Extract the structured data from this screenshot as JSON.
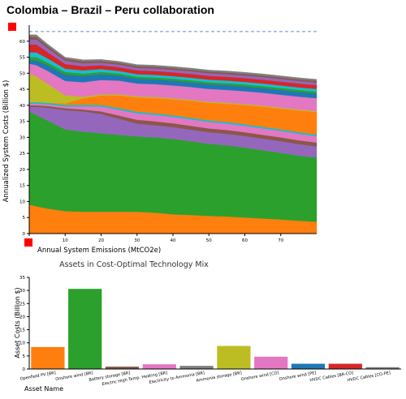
{
  "page": {
    "title": "Colombia – Brazil – Peru collaboration"
  },
  "colors": {
    "handle": "#ff0000",
    "dashed_line": "#5b8fd6"
  },
  "chart_data": [
    {
      "type": "area",
      "title": "",
      "xlabel": "Annual System Emissions (MtCO2e)",
      "ylabel": "Annualized System Costs (Billion $)",
      "xlim": [
        0,
        80
      ],
      "ylim": [
        0,
        65
      ],
      "x_ticks": [
        0,
        10,
        20,
        30,
        40,
        50,
        60,
        70
      ],
      "y_ticks": [
        0,
        5,
        10,
        15,
        20,
        25,
        30,
        35,
        40,
        45,
        50,
        55,
        60
      ],
      "reference_line_y": 63,
      "x": [
        0,
        2,
        5,
        10,
        15,
        20,
        25,
        30,
        35,
        40,
        45,
        50,
        55,
        60,
        65,
        70,
        75,
        80
      ],
      "series": [
        {
          "color": "#ff7f0e",
          "values": [
            9.0,
            8.5,
            7.8,
            7.0,
            6.8,
            6.8,
            6.8,
            6.8,
            6.5,
            6.0,
            5.8,
            5.5,
            5.3,
            5.0,
            4.7,
            4.4,
            4.0,
            3.7
          ]
        },
        {
          "color": "#2ca02c",
          "values": [
            29.0,
            28.5,
            27.5,
            25.5,
            25.0,
            24.5,
            24.0,
            23.5,
            23.5,
            23.5,
            23.0,
            22.5,
            22.2,
            21.8,
            21.3,
            20.8,
            20.3,
            20.0
          ]
        },
        {
          "color": "#9467bd",
          "values": [
            1.5,
            2.5,
            4.0,
            6.0,
            6.3,
            6.0,
            5.0,
            4.0,
            3.8,
            3.7,
            3.6,
            3.6,
            3.6,
            3.6,
            3.6,
            3.6,
            3.6,
            3.5
          ]
        },
        {
          "color": "#8c564b",
          "values": [
            0.5,
            0.5,
            0.5,
            0.6,
            0.6,
            0.8,
            1.0,
            1.2,
            1.2,
            1.2,
            1.2,
            1.2,
            1.2,
            1.2,
            1.2,
            1.2,
            1.2,
            1.2
          ]
        },
        {
          "color": "#e377c2",
          "values": [
            0.5,
            0.5,
            0.5,
            0.5,
            1.0,
            1.5,
            1.8,
            2.0,
            2.0,
            2.0,
            2.0,
            2.0,
            2.0,
            2.0,
            2.0,
            2.0,
            2.0,
            2.0
          ]
        },
        {
          "color": "#17becf",
          "values": [
            0.5,
            0.5,
            0.5,
            0.5,
            0.5,
            0.5,
            0.5,
            0.5,
            0.5,
            0.5,
            0.5,
            0.5,
            0.5,
            0.5,
            0.5,
            0.5,
            0.5,
            0.5
          ]
        },
        {
          "color": "#ff7f0e",
          "values": [
            0.0,
            0.0,
            0.0,
            0.5,
            2.0,
            3.0,
            4.0,
            4.5,
            4.8,
            5.0,
            5.3,
            5.5,
            5.7,
            6.0,
            6.3,
            6.5,
            6.8,
            7.0
          ]
        },
        {
          "color": "#bcbd22",
          "values": [
            9.0,
            8.0,
            6.0,
            2.5,
            0.5,
            0.3,
            0.3,
            0.3,
            0.3,
            0.3,
            0.3,
            0.3,
            0.3,
            0.3,
            0.3,
            0.3,
            0.3,
            0.3
          ]
        },
        {
          "color": "#e377c2",
          "values": [
            3.0,
            3.5,
            4.0,
            4.5,
            4.5,
            4.5,
            4.3,
            4.0,
            4.0,
            4.0,
            4.0,
            4.0,
            4.0,
            4.0,
            4.0,
            4.0,
            4.0,
            4.0
          ]
        },
        {
          "color": "#1f77b4",
          "values": [
            1.0,
            1.5,
            1.8,
            2.0,
            2.0,
            1.8,
            1.6,
            1.5,
            1.5,
            1.5,
            1.5,
            1.5,
            1.5,
            1.5,
            1.5,
            1.5,
            1.5,
            1.5
          ]
        },
        {
          "color": "#2ca02c",
          "values": [
            1.0,
            1.0,
            0.8,
            0.8,
            0.7,
            0.7,
            0.6,
            0.6,
            0.6,
            0.6,
            0.6,
            0.6,
            0.6,
            0.6,
            0.6,
            0.6,
            0.6,
            0.6
          ]
        },
        {
          "color": "#17becf",
          "values": [
            1.5,
            1.5,
            1.3,
            1.0,
            1.0,
            0.9,
            0.8,
            0.8,
            0.8,
            0.8,
            0.8,
            0.8,
            0.8,
            0.8,
            0.8,
            0.8,
            0.8,
            0.8
          ]
        },
        {
          "color": "#d62728",
          "values": [
            2.5,
            2.5,
            2.0,
            1.5,
            1.3,
            1.2,
            1.2,
            1.2,
            1.2,
            1.2,
            1.2,
            1.2,
            1.2,
            1.2,
            1.2,
            1.2,
            1.2,
            1.2
          ]
        },
        {
          "color": "#9467bd",
          "values": [
            1.5,
            1.5,
            1.2,
            1.0,
            0.9,
            0.8,
            0.8,
            0.8,
            0.8,
            0.8,
            0.8,
            0.8,
            0.8,
            0.8,
            0.8,
            0.8,
            0.8,
            0.8
          ]
        },
        {
          "color": "#8c564b",
          "values": [
            0.8,
            0.8,
            0.7,
            0.6,
            0.6,
            0.5,
            0.5,
            0.5,
            0.5,
            0.5,
            0.5,
            0.5,
            0.5,
            0.5,
            0.5,
            0.5,
            0.5,
            0.5
          ]
        },
        {
          "color": "#7f7f7f",
          "values": [
            0.7,
            0.7,
            0.6,
            0.5,
            0.5,
            0.5,
            0.5,
            0.5,
            0.5,
            0.5,
            0.5,
            0.5,
            0.5,
            0.5,
            0.5,
            0.5,
            0.5,
            0.5
          ]
        }
      ]
    },
    {
      "type": "bar",
      "title": "Assets in Cost-Optimal Technology Mix",
      "xlabel": "Asset Name",
      "ylabel": "Asset Costs (Billion $)",
      "ylim": [
        0,
        35
      ],
      "y_ticks": [
        0,
        5,
        10,
        15,
        20,
        25,
        30,
        35
      ],
      "categories": [
        "Openfield PV [BR]",
        "Onshore wind [BR]",
        "Battery storage [BR]",
        "Electric High Temp. Heating [BR]",
        "Electricity to Ammonia [BR]",
        "Ammonia storage [BR]",
        "Onshore wind [CO]",
        "Onshore wind [PE]",
        "HVDC Cables [BR-CO]",
        "HVDC Cables [CO-PE]"
      ],
      "values": [
        8.4,
        30.6,
        0.9,
        1.8,
        1.2,
        8.8,
        4.7,
        2.0,
        2.0,
        0.7
      ],
      "colors": [
        "#ff7f0e",
        "#2ca02c",
        "#8c564b",
        "#e377c2",
        "#7f7f7f",
        "#bcbd22",
        "#e377c2",
        "#1f77b4",
        "#d62728",
        "#7f7f7f"
      ]
    }
  ]
}
